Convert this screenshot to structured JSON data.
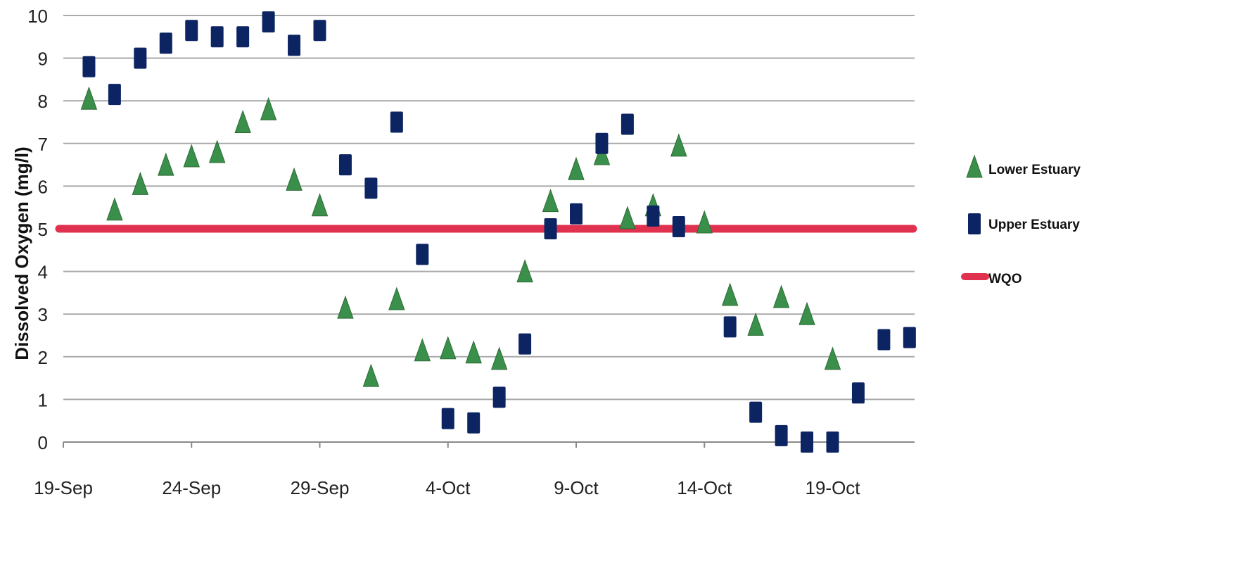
{
  "chart_data": {
    "type": "scatter",
    "title": "",
    "xlabel": "",
    "ylabel": "Dissolved Oxygen (mg/l)",
    "x_categories": [
      "19-Sep",
      "20-Sep",
      "21-Sep",
      "22-Sep",
      "23-Sep",
      "24-Sep",
      "25-Sep",
      "26-Sep",
      "27-Sep",
      "28-Sep",
      "29-Sep",
      "30-Sep",
      "1-Oct",
      "2-Oct",
      "3-Oct",
      "4-Oct",
      "5-Oct",
      "6-Oct",
      "7-Oct",
      "8-Oct",
      "9-Oct",
      "10-Oct",
      "11-Oct",
      "12-Oct",
      "13-Oct",
      "14-Oct",
      "15-Oct",
      "16-Oct",
      "17-Oct",
      "18-Oct",
      "19-Oct",
      "20-Oct",
      "21-Oct",
      "22-Oct"
    ],
    "x_tick_labels": [
      "19-Sep",
      "24-Sep",
      "29-Sep",
      "4-Oct",
      "9-Oct",
      "14-Oct",
      "19-Oct"
    ],
    "y_ticks": [
      0,
      1,
      2,
      3,
      4,
      5,
      6,
      7,
      8,
      9,
      10
    ],
    "ylim": [
      0,
      10
    ],
    "grid": true,
    "legend_position": "right",
    "series": [
      {
        "name": "Lower Estuary",
        "marker": "triangle",
        "color": "#3a8f4a",
        "points": [
          {
            "x": "20-Sep",
            "y": 8.0
          },
          {
            "x": "21-Sep",
            "y": 5.4
          },
          {
            "x": "22-Sep",
            "y": 6.0
          },
          {
            "x": "23-Sep",
            "y": 6.45
          },
          {
            "x": "24-Sep",
            "y": 6.65
          },
          {
            "x": "25-Sep",
            "y": 6.75
          },
          {
            "x": "26-Sep",
            "y": 7.45
          },
          {
            "x": "27-Sep",
            "y": 7.75
          },
          {
            "x": "28-Sep",
            "y": 6.1
          },
          {
            "x": "29-Sep",
            "y": 5.5
          },
          {
            "x": "30-Sep",
            "y": 3.1
          },
          {
            "x": "1-Oct",
            "y": 1.5
          },
          {
            "x": "2-Oct",
            "y": 3.3
          },
          {
            "x": "3-Oct",
            "y": 2.1
          },
          {
            "x": "4-Oct",
            "y": 2.15
          },
          {
            "x": "5-Oct",
            "y": 2.05
          },
          {
            "x": "6-Oct",
            "y": 1.9
          },
          {
            "x": "7-Oct",
            "y": 3.95
          },
          {
            "x": "8-Oct",
            "y": 5.6
          },
          {
            "x": "9-Oct",
            "y": 6.35
          },
          {
            "x": "10-Oct",
            "y": 6.7
          },
          {
            "x": "11-Oct",
            "y": 5.2
          },
          {
            "x": "12-Oct",
            "y": 5.5
          },
          {
            "x": "13-Oct",
            "y": 6.9
          },
          {
            "x": "14-Oct",
            "y": 5.1
          },
          {
            "x": "15-Oct",
            "y": 3.4
          },
          {
            "x": "16-Oct",
            "y": 2.7
          },
          {
            "x": "17-Oct",
            "y": 3.35
          },
          {
            "x": "18-Oct",
            "y": 2.95
          },
          {
            "x": "19-Oct",
            "y": 1.9
          }
        ]
      },
      {
        "name": "Upper Estuary",
        "marker": "rect",
        "color": "#0d2463",
        "points": [
          {
            "x": "20-Sep",
            "y": 8.8
          },
          {
            "x": "21-Sep",
            "y": 8.15
          },
          {
            "x": "22-Sep",
            "y": 9.0
          },
          {
            "x": "23-Sep",
            "y": 9.35
          },
          {
            "x": "24-Sep",
            "y": 9.65
          },
          {
            "x": "25-Sep",
            "y": 9.5
          },
          {
            "x": "26-Sep",
            "y": 9.5
          },
          {
            "x": "27-Sep",
            "y": 9.85
          },
          {
            "x": "28-Sep",
            "y": 9.3
          },
          {
            "x": "29-Sep",
            "y": 9.65
          },
          {
            "x": "30-Sep",
            "y": 6.5
          },
          {
            "x": "1-Oct",
            "y": 5.95
          },
          {
            "x": "2-Oct",
            "y": 7.5
          },
          {
            "x": "3-Oct",
            "y": 4.4
          },
          {
            "x": "4-Oct",
            "y": 0.55
          },
          {
            "x": "5-Oct",
            "y": 0.45
          },
          {
            "x": "6-Oct",
            "y": 1.05
          },
          {
            "x": "7-Oct",
            "y": 2.3
          },
          {
            "x": "8-Oct",
            "y": 5.0
          },
          {
            "x": "9-Oct",
            "y": 5.35
          },
          {
            "x": "10-Oct",
            "y": 7.0
          },
          {
            "x": "11-Oct",
            "y": 7.45
          },
          {
            "x": "12-Oct",
            "y": 5.3
          },
          {
            "x": "13-Oct",
            "y": 5.05
          },
          {
            "x": "15-Oct",
            "y": 2.7
          },
          {
            "x": "16-Oct",
            "y": 0.7
          },
          {
            "x": "17-Oct",
            "y": 0.15
          },
          {
            "x": "18-Oct",
            "y": 0.0
          },
          {
            "x": "19-Oct",
            "y": 0.0
          },
          {
            "x": "20-Oct",
            "y": 1.15
          },
          {
            "x": "21-Oct",
            "y": 2.4
          },
          {
            "x": "22-Oct",
            "y": 2.45
          }
        ]
      }
    ],
    "reference_lines": [
      {
        "name": "WQO",
        "y": 5,
        "color": "#e0324e"
      }
    ]
  }
}
